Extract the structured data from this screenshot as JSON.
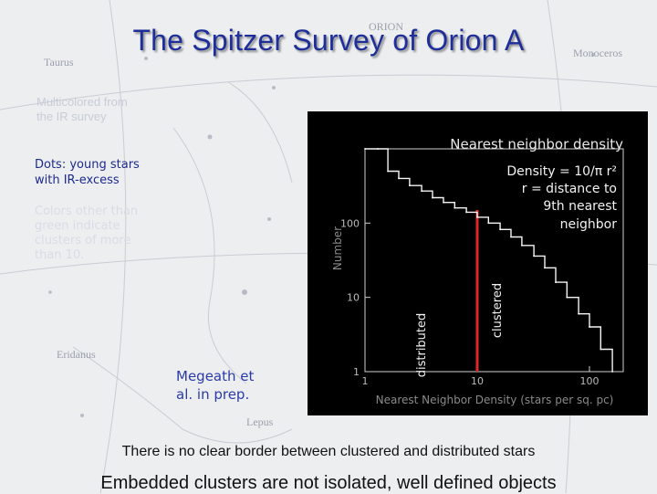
{
  "slide": {
    "title": "The Spitzer Survey of Orion A",
    "faint_note_lines": [
      "Multicolored from",
      "the IR survey"
    ],
    "dots_note_lines": [
      "Dots: young stars",
      "with IR-excess"
    ],
    "colors_note_lines": [
      "Colors other than",
      "green indicate",
      "clusters of more",
      "than 10."
    ],
    "credit_lines": [
      "Megeath et",
      "al. in prep."
    ],
    "border_statement": "There is no clear border between clustered and distributed stars",
    "clusters_statement": "Embedded clusters are not isolated, well defined objects",
    "sky_labels": [
      "Taurus",
      "ORION",
      "Lepus",
      "Eridanus",
      "Monoceros"
    ]
  },
  "chart_data": {
    "type": "line",
    "title": "Nearest neighbor density",
    "xlabel": "Nearest Neighbor Density (stars per sq. pc)",
    "ylabel": "Number",
    "x_scale": "log",
    "y_scale": "log",
    "xlim": [
      1,
      200
    ],
    "ylim": [
      1,
      1000
    ],
    "x_ticks": [
      {
        "value": 1,
        "label": "1"
      },
      {
        "value": 10,
        "label": "10"
      },
      {
        "value": 100,
        "label": "100"
      }
    ],
    "y_ticks": [
      {
        "value": 1,
        "label": "1"
      },
      {
        "value": 10,
        "label": "10"
      },
      {
        "value": 100,
        "label": "100"
      }
    ],
    "annotation_lines": [
      "Density = 10/π r²",
      "r = distance to",
      "9th nearest",
      "neighbor"
    ],
    "threshold": {
      "x": 10,
      "color": "#e0262a"
    },
    "region_labels": {
      "left": "distributed",
      "right": "clustered"
    },
    "series": [
      {
        "x": [
          0.8,
          1.3,
          1.6,
          2.0,
          2.5,
          3.2,
          4.0,
          5.0,
          6.3,
          8.0,
          10,
          12.6,
          16,
          20,
          25,
          32,
          40,
          50,
          63,
          80,
          100,
          126,
          160
        ],
        "y": [
          1000,
          1000,
          500,
          400,
          320,
          270,
          220,
          190,
          160,
          140,
          120,
          100,
          82,
          65,
          50,
          36,
          25,
          16,
          10,
          6,
          4,
          2,
          1
        ]
      }
    ]
  }
}
